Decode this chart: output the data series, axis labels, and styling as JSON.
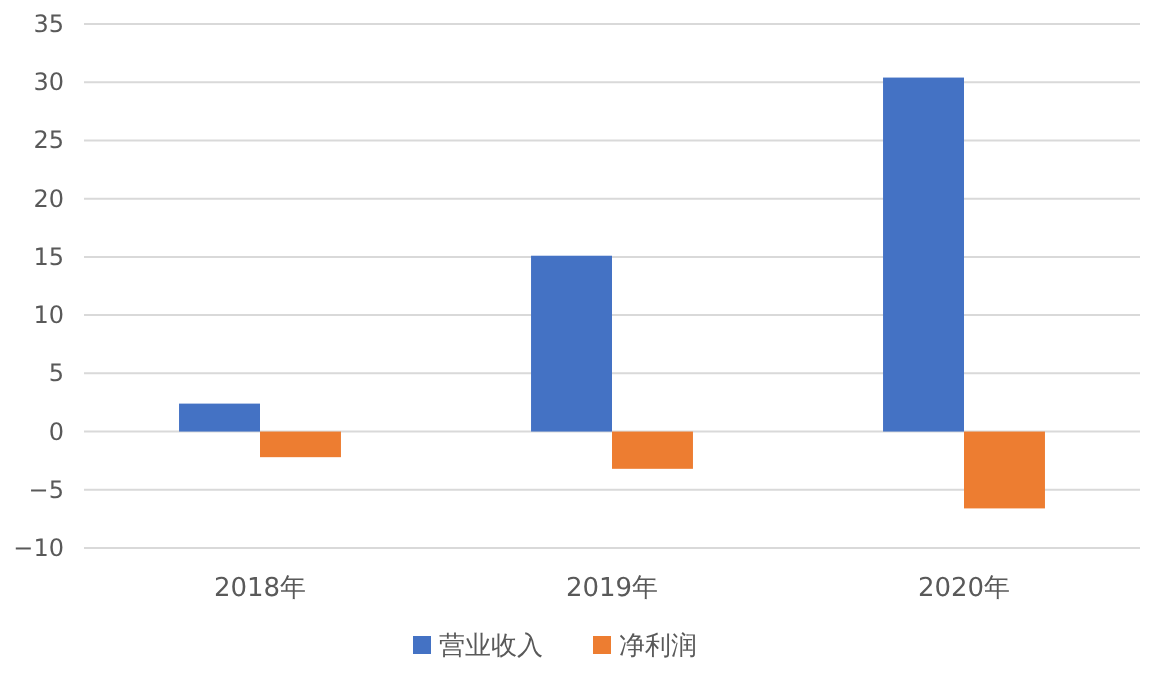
{
  "chart_data": {
    "type": "bar",
    "categories": [
      "2018年",
      "2019年",
      "2020年"
    ],
    "series": [
      {
        "name": "营业收入",
        "color": "#4472c4",
        "values": [
          2.4,
          15.1,
          30.4
        ]
      },
      {
        "name": "净利润",
        "color": "#ed7d31",
        "values": [
          -2.2,
          -3.2,
          -6.6
        ]
      }
    ],
    "ylim": [
      -10,
      35
    ],
    "yticks": [
      -10,
      -5,
      0,
      5,
      10,
      15,
      20,
      25,
      30,
      35
    ],
    "grid": "y",
    "legend": "bottom"
  }
}
